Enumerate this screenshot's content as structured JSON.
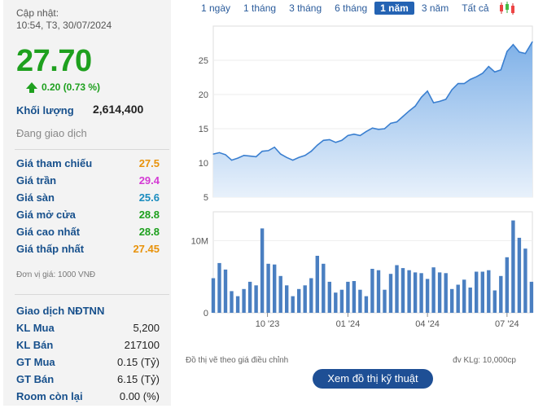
{
  "header": {
    "updated_label": "Cập nhật:",
    "updated_time": "10:54, T3, 30/07/2024"
  },
  "quote": {
    "price": "27.70",
    "change": "0.20 (0.73 %)",
    "volume_label": "Khối lượng",
    "volume": "2,614,400",
    "status": "Đang giao dịch",
    "colors": {
      "up": "#1ea01e",
      "ref": "#f39c12",
      "ceil": "#d43ad4",
      "floor": "#1aa1c8"
    }
  },
  "price_rows": [
    {
      "label": "Giá tham chiếu",
      "value": "27.5",
      "color": "#e8920a"
    },
    {
      "label": "Giá trần",
      "value": "29.4",
      "color": "#d43ad4"
    },
    {
      "label": "Giá sàn",
      "value": "25.6",
      "color": "#1a8cbf"
    },
    {
      "label": "Giá mở cửa",
      "value": "28.8",
      "color": "#1ea01e"
    },
    {
      "label": "Giá cao nhất",
      "value": "28.8",
      "color": "#1ea01e"
    },
    {
      "label": "Giá thấp nhất",
      "value": "27.45",
      "color": "#e8920a"
    }
  ],
  "unit_note": "Đơn vị giá: 1000 VNĐ",
  "foreign": {
    "title": "Giao dịch NĐTNN",
    "rows": [
      {
        "label": "KL Mua",
        "value": "5,200"
      },
      {
        "label": "KL Bán",
        "value": "217100"
      },
      {
        "label": "GT Mua",
        "value": "0.15 (Tỷ)"
      },
      {
        "label": "GT Bán",
        "value": "6.15 (Tỷ)"
      },
      {
        "label": "Room còn lại",
        "value": "0.00 (%)"
      }
    ]
  },
  "tabs": [
    {
      "label": "1 ngày",
      "active": false
    },
    {
      "label": "1 tháng",
      "active": false
    },
    {
      "label": "3 tháng",
      "active": false
    },
    {
      "label": "6 tháng",
      "active": false
    },
    {
      "label": "1 năm",
      "active": true
    },
    {
      "label": "3 năm",
      "active": false
    },
    {
      "label": "Tất cả",
      "active": false
    }
  ],
  "candlestick_icon": "candlestick-icon",
  "footer": {
    "note": "Đồ thị vẽ theo giá điều chỉnh",
    "vol_unit": "đv KLg: 10,000cp",
    "tech_button": "Xem đồ thị kỹ thuật"
  },
  "chart_data": [
    {
      "type": "area",
      "x": [
        "2023-07-31",
        "2023-08-07",
        "2023-08-14",
        "2023-08-21",
        "2023-08-28",
        "2023-09-04",
        "2023-09-11",
        "2023-09-18",
        "2023-09-25",
        "2023-10-02",
        "2023-10-09",
        "2023-10-16",
        "2023-10-23",
        "2023-10-30",
        "2023-11-06",
        "2023-11-13",
        "2023-11-20",
        "2023-11-27",
        "2023-12-04",
        "2023-12-11",
        "2023-12-18",
        "2023-12-25",
        "2024-01-01",
        "2024-01-08",
        "2024-01-15",
        "2024-01-22",
        "2024-01-29",
        "2024-02-05",
        "2024-02-12",
        "2024-02-19",
        "2024-02-26",
        "2024-03-04",
        "2024-03-11",
        "2024-03-18",
        "2024-03-25",
        "2024-04-01",
        "2024-04-08",
        "2024-04-15",
        "2024-04-22",
        "2024-04-29",
        "2024-05-06",
        "2024-05-13",
        "2024-05-20",
        "2024-05-27",
        "2024-06-03",
        "2024-06-10",
        "2024-06-17",
        "2024-06-24",
        "2024-07-01",
        "2024-07-08",
        "2024-07-15",
        "2024-07-22",
        "2024-07-30"
      ],
      "y": [
        11.3,
        11.5,
        11.2,
        10.4,
        10.7,
        11.1,
        11.0,
        10.9,
        11.7,
        11.8,
        12.3,
        11.3,
        10.8,
        10.4,
        10.8,
        11.1,
        11.7,
        12.6,
        13.3,
        13.4,
        13.0,
        13.3,
        14.0,
        14.2,
        14.0,
        14.6,
        15.1,
        14.9,
        15.0,
        15.8,
        16.0,
        16.8,
        17.6,
        18.3,
        19.6,
        20.5,
        18.8,
        19.0,
        19.3,
        20.7,
        21.6,
        21.6,
        22.2,
        22.6,
        23.1,
        24.1,
        23.3,
        23.6,
        26.3,
        27.3,
        26.2,
        26.0,
        27.7
      ],
      "ylim": [
        5,
        30
      ],
      "yticks": [
        5,
        10,
        15,
        20,
        25
      ],
      "color": "#3a7fd0"
    },
    {
      "type": "bar",
      "x": [
        "2023-07-31",
        "2023-08-07",
        "2023-08-14",
        "2023-08-21",
        "2023-08-28",
        "2023-09-04",
        "2023-09-11",
        "2023-09-18",
        "2023-09-25",
        "2023-10-02",
        "2023-10-09",
        "2023-10-16",
        "2023-10-23",
        "2023-10-30",
        "2023-11-06",
        "2023-11-13",
        "2023-11-20",
        "2023-11-27",
        "2023-12-04",
        "2023-12-11",
        "2023-12-18",
        "2023-12-25",
        "2024-01-01",
        "2024-01-08",
        "2024-01-15",
        "2024-01-22",
        "2024-01-29",
        "2024-02-05",
        "2024-02-12",
        "2024-02-19",
        "2024-02-26",
        "2024-03-04",
        "2024-03-11",
        "2024-03-18",
        "2024-03-25",
        "2024-04-01",
        "2024-04-08",
        "2024-04-15",
        "2024-04-22",
        "2024-04-29",
        "2024-05-06",
        "2024-05-13",
        "2024-05-20",
        "2024-05-27",
        "2024-06-03",
        "2024-06-10",
        "2024-06-17",
        "2024-06-24",
        "2024-07-01",
        "2024-07-08",
        "2024-07-15",
        "2024-07-22",
        "2024-07-29"
      ],
      "values": [
        4.8,
        6.9,
        6.0,
        3.0,
        2.3,
        3.3,
        4.3,
        3.8,
        11.7,
        6.8,
        6.7,
        5.1,
        3.8,
        2.3,
        3.3,
        3.8,
        4.8,
        7.9,
        6.8,
        4.3,
        2.8,
        3.2,
        4.3,
        4.4,
        3.2,
        2.3,
        6.1,
        5.9,
        3.2,
        5.4,
        6.6,
        6.2,
        5.9,
        5.6,
        5.5,
        4.7,
        6.3,
        5.6,
        5.5,
        3.3,
        3.9,
        4.6,
        3.5,
        5.7,
        5.7,
        5.9,
        3.1,
        5.1,
        7.7,
        12.8,
        10.4,
        8.9,
        4.3
      ],
      "ylabel_ticks": [
        "0",
        "10M"
      ],
      "xticks": [
        {
          "x": "2023-10-01",
          "label": "10 '23"
        },
        {
          "x": "2024-01-01",
          "label": "01 '24"
        },
        {
          "x": "2024-04-01",
          "label": "04 '24"
        },
        {
          "x": "2024-07-01",
          "label": "07 '24"
        }
      ],
      "color": "#4a7fc1"
    }
  ]
}
